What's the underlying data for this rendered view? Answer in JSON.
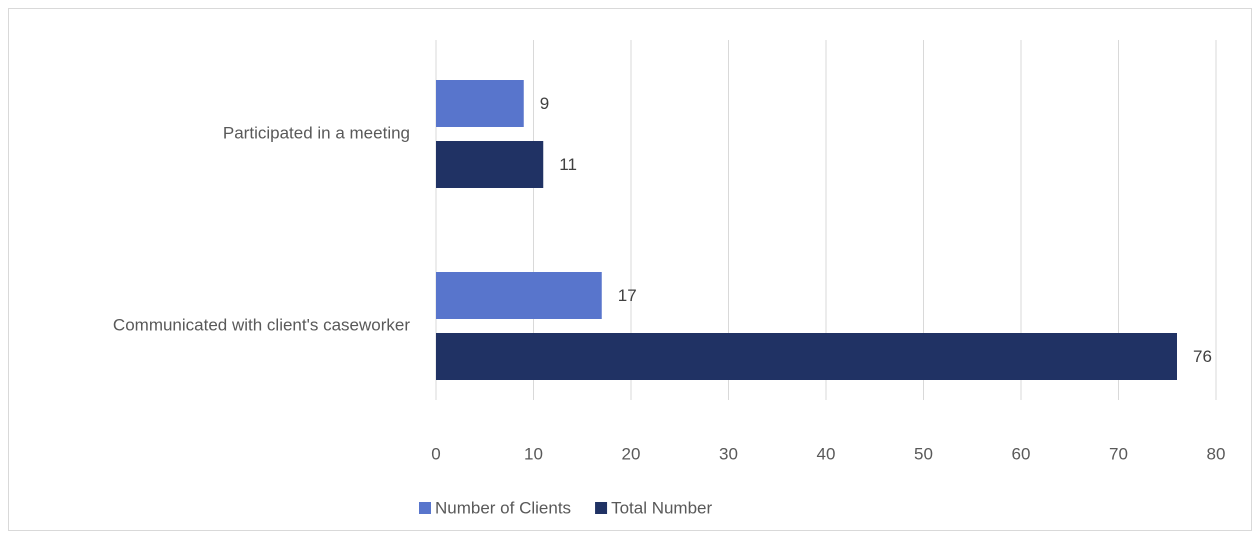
{
  "chart_data": {
    "type": "bar",
    "orientation": "horizontal",
    "categories": [
      "Participated in a meeting",
      "Communicated with client's caseworker"
    ],
    "series": [
      {
        "name": "Number of Clients",
        "color": "#5875cc",
        "values": [
          9,
          17
        ]
      },
      {
        "name": "Total Number",
        "color": "#203264",
        "values": [
          11,
          76
        ]
      }
    ],
    "xlim": [
      0,
      80
    ],
    "xticks": [
      0,
      10,
      20,
      30,
      40,
      50,
      60,
      70,
      80
    ],
    "grid": true,
    "legend": "bottom"
  }
}
